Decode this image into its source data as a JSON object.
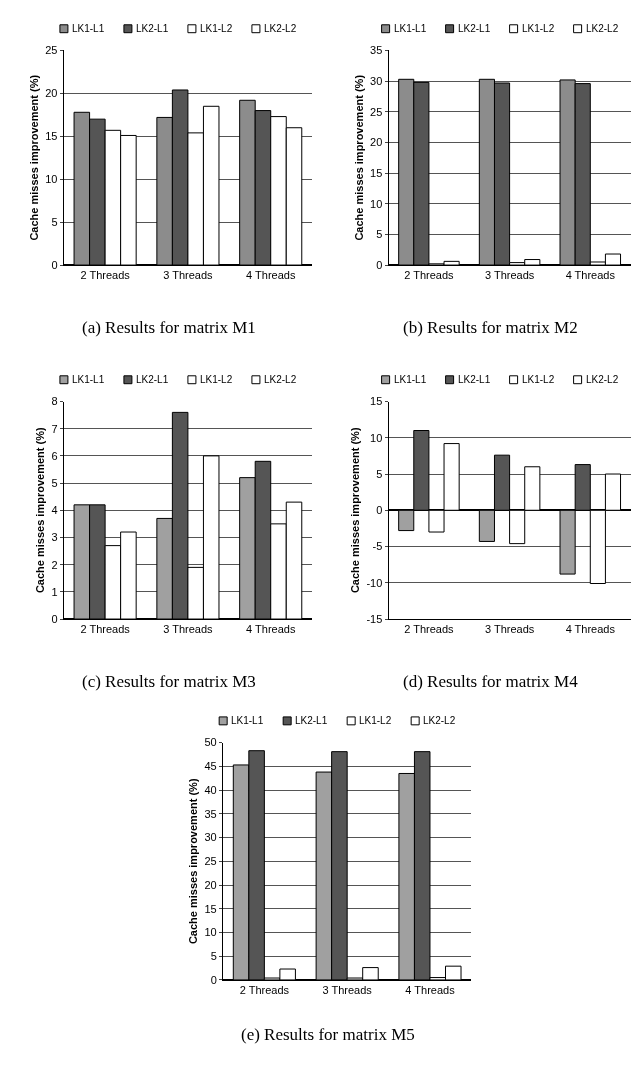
{
  "chart_data": [
    {
      "type": "bar",
      "title": "(a) Results for matrix M1",
      "ylabel": "Cache misses improvement (%)",
      "categories": [
        "2 Threads",
        "3 Threads",
        "4 Threads"
      ],
      "ylim": [
        0,
        25
      ],
      "yticks": [
        0,
        5,
        10,
        15,
        20,
        25
      ],
      "grid": "y",
      "legend": "top",
      "series": [
        {
          "name": "LK1-L1",
          "color": "#8c8c8c",
          "values": [
            17.8,
            17.2,
            19.2
          ]
        },
        {
          "name": "LK2-L1",
          "color": "#555555",
          "values": [
            17.0,
            20.4,
            18.0
          ]
        },
        {
          "name": "LK1-L2",
          "color": "#ffffff",
          "values": [
            15.7,
            15.4,
            17.3
          ]
        },
        {
          "name": "LK2-L2",
          "color": "#ffffff",
          "values": [
            15.1,
            18.5,
            16.0
          ]
        }
      ]
    },
    {
      "type": "bar",
      "title": "(b) Results for matrix M2",
      "ylabel": "Cache misses improvement (%)",
      "categories": [
        "2 Threads",
        "3 Threads",
        "4 Threads"
      ],
      "ylim": [
        0,
        35
      ],
      "yticks": [
        0,
        5,
        10,
        15,
        20,
        25,
        30,
        35
      ],
      "grid": "y",
      "legend": "top",
      "series": [
        {
          "name": "LK1-L1",
          "color": "#8c8c8c",
          "values": [
            30.3,
            30.3,
            30.2
          ]
        },
        {
          "name": "LK2-L1",
          "color": "#555555",
          "values": [
            29.8,
            29.7,
            29.6
          ]
        },
        {
          "name": "LK1-L2",
          "color": "#ffffff",
          "values": [
            0.2,
            0.4,
            0.5
          ]
        },
        {
          "name": "LK2-L2",
          "color": "#ffffff",
          "values": [
            0.6,
            0.9,
            1.8
          ]
        }
      ]
    },
    {
      "type": "bar",
      "title": "(c) Results for matrix M3",
      "ylabel": "Cache misses improvement (%)",
      "categories": [
        "2 Threads",
        "3 Threads",
        "4 Threads"
      ],
      "ylim": [
        0,
        8
      ],
      "yticks": [
        0,
        1,
        2,
        3,
        4,
        5,
        6,
        7,
        8
      ],
      "grid": "y",
      "legend": "top",
      "series": [
        {
          "name": "LK1-L1",
          "color": "#a0a0a0",
          "values": [
            4.2,
            3.7,
            5.2
          ]
        },
        {
          "name": "LK2-L1",
          "color": "#555555",
          "values": [
            4.2,
            7.6,
            5.8
          ]
        },
        {
          "name": "LK1-L2",
          "color": "#ffffff",
          "values": [
            2.7,
            1.9,
            3.5
          ]
        },
        {
          "name": "LK2-L2",
          "color": "#ffffff",
          "values": [
            3.2,
            6.0,
            4.3
          ]
        }
      ]
    },
    {
      "type": "bar",
      "title": "(d) Results for matrix M4",
      "ylabel": "Cache misses improvement (%)",
      "categories": [
        "2 Threads",
        "3 Threads",
        "4 Threads"
      ],
      "ylim": [
        -15,
        15
      ],
      "yticks": [
        -15,
        -10,
        -5,
        0,
        5,
        10,
        15
      ],
      "grid": "y",
      "legend": "top",
      "series": [
        {
          "name": "LK1-L1",
          "color": "#a0a0a0",
          "values": [
            -2.8,
            -4.3,
            -8.8
          ]
        },
        {
          "name": "LK2-L1",
          "color": "#555555",
          "values": [
            11.0,
            7.6,
            6.3
          ]
        },
        {
          "name": "LK1-L2",
          "color": "#ffffff",
          "values": [
            -3.0,
            -4.6,
            -10.1
          ]
        },
        {
          "name": "LK2-L2",
          "color": "#ffffff",
          "values": [
            9.2,
            6.0,
            5.0
          ]
        }
      ]
    },
    {
      "type": "bar",
      "title": "(e) Results for matrix M5",
      "ylabel": "Cache misses improvement (%)",
      "categories": [
        "2 Threads",
        "3 Threads",
        "4 Threads"
      ],
      "ylim": [
        0,
        50
      ],
      "yticks": [
        0,
        5,
        10,
        15,
        20,
        25,
        30,
        35,
        40,
        45,
        50
      ],
      "grid": "y",
      "legend": "top",
      "series": [
        {
          "name": "LK1-L1",
          "color": "#a0a0a0",
          "values": [
            45.3,
            43.8,
            43.5
          ]
        },
        {
          "name": "LK2-L1",
          "color": "#555555",
          "values": [
            48.3,
            48.1,
            48.1
          ]
        },
        {
          "name": "LK1-L2",
          "color": "#ffffff",
          "values": [
            0.4,
            0.4,
            0.5
          ]
        },
        {
          "name": "LK2-L2",
          "color": "#ffffff",
          "values": [
            2.3,
            2.6,
            2.9
          ]
        }
      ]
    }
  ]
}
